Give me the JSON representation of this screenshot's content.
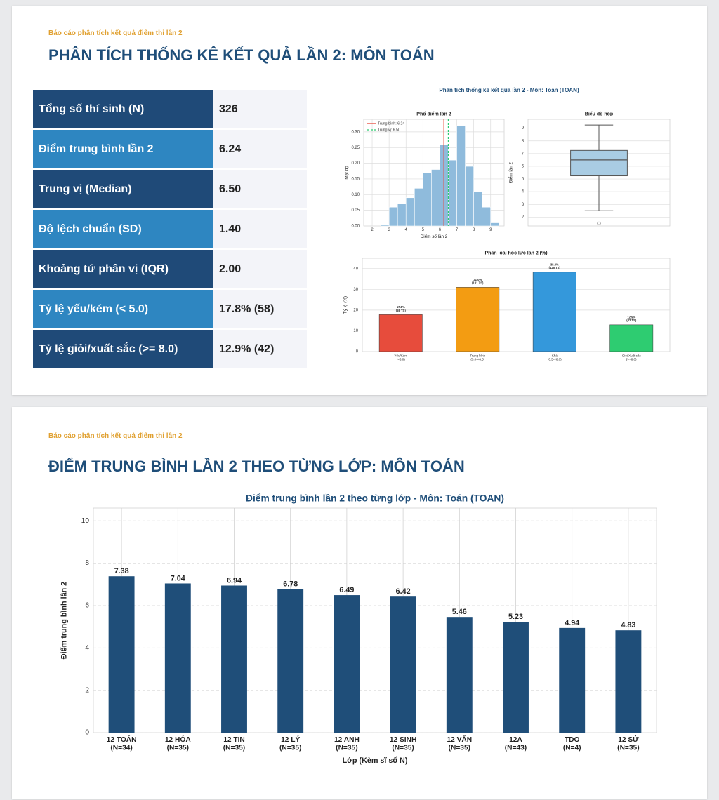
{
  "slide1": {
    "header": "Báo cáo phân tích kết quả điểm thi lần 2",
    "title": "PHÂN TÍCH THỐNG KÊ KẾT QUẢ LẦN 2: MÔN TOÁN"
  },
  "table": {
    "rows": [
      [
        "Tổng số thí sinh (N)",
        "326"
      ],
      [
        "Điểm trung bình lần 2",
        "6.24"
      ],
      [
        "Trung vị (Median)",
        "6.50"
      ],
      [
        "Độ lệch chuẩn (SD)",
        "1.40"
      ],
      [
        "Khoảng tứ phân vị (IQR)",
        "2.00"
      ],
      [
        "Tỷ lệ yếu/kém (< 5.0)",
        "17.8% (58)"
      ],
      [
        "Tỷ lệ giỏi/xuất sắc (>= 8.0)",
        "12.9% (42)"
      ]
    ]
  },
  "figure": {
    "title": "Phân tích thống kê kết quả lần 2 - Môn: Toán (TOAN)"
  },
  "slide2": {
    "header": "Báo cáo phân tích kết quả điểm thi lần 2",
    "title": "ĐIỂM TRUNG BÌNH LẦN 2 THEO TỪNG LỚP: MÔN TOÁN"
  },
  "chart_data": [
    {
      "type": "histogram",
      "title": "Phổ điểm lần 2",
      "xlabel": "Điểm số lần 2",
      "ylabel": "Mật độ",
      "bins": [
        2.5,
        3,
        3.5,
        4,
        4.5,
        5,
        5.5,
        6,
        6.5,
        7,
        7.5,
        8,
        8.5,
        9,
        9.5
      ],
      "values": [
        0.005,
        0.06,
        0.07,
        0.09,
        0.12,
        0.17,
        0.18,
        0.26,
        0.21,
        0.32,
        0.19,
        0.11,
        0.06,
        0.01
      ],
      "color": "#8fbbdc",
      "xlim": [
        1.5,
        9.8
      ],
      "xticks": [
        2,
        3,
        4,
        5,
        6,
        7,
        8,
        9
      ],
      "ylim": [
        0,
        0.34
      ],
      "yticks": [
        {
          "value": 0,
          "label": "0.00"
        },
        {
          "value": 0.05,
          "label": "0.05"
        },
        {
          "value": 0.1,
          "label": "0.10"
        },
        {
          "value": 0.15,
          "label": "0.15"
        },
        {
          "value": 0.2,
          "label": "0.20"
        },
        {
          "value": 0.25,
          "label": "0.25"
        },
        {
          "value": 0.3,
          "label": "0.30"
        }
      ],
      "grid": true,
      "legend": "upper-left",
      "reference_lines": [
        {
          "name": "Trung bình: 6.24",
          "value": 6.24,
          "color": "#e74c3c",
          "style": "solid"
        },
        {
          "name": "Trung vị: 6.50",
          "value": 6.5,
          "color": "#2ecc71",
          "style": "dashed"
        }
      ]
    },
    {
      "type": "box",
      "title": "Biểu đồ hộp",
      "ylabel": "Điểm lần 2",
      "ylim": [
        1.3,
        9.7
      ],
      "yticks": [
        2,
        3,
        4,
        5,
        6,
        7,
        8,
        9
      ],
      "whisker_low": 2.5,
      "q1": 5.25,
      "median": 6.5,
      "q3": 7.25,
      "whisker_high": 9.25,
      "outliers": [
        1.5
      ],
      "color": "#a9cce3",
      "grid": true
    },
    {
      "type": "bar",
      "title": "Phân loại học lực lần 2 (%)",
      "ylabel": "Tỷ lệ (%)",
      "categories": [
        "Yếu/Kém\n(<5.0)",
        "Trung bình\n(5.0-<6.5)",
        "Khá\n(6.5-<8.0)",
        "Giỏi/Xuất sắc\n(>=8.0)"
      ],
      "values": [
        17.8,
        31.0,
        38.3,
        12.9
      ],
      "value_labels": [
        "17.8%\n(58 TS)",
        "31.0%\n(101 TS)",
        "38.3%\n(125 TS)",
        "12.9%\n(42 TS)"
      ],
      "colors": [
        "#e74c3c",
        "#f39c12",
        "#3498db",
        "#2ecc71"
      ],
      "ylim": [
        0,
        45
      ],
      "yticks": [
        0,
        10,
        20,
        30,
        40
      ],
      "grid": true
    },
    {
      "type": "bar",
      "title": "Điểm trung bình lần 2 theo từng lớp - Môn: Toán (TOAN)",
      "xlabel": "Lớp (Kèm sĩ số N)",
      "ylabel": "Điểm trung bình lần 2",
      "categories": [
        "12 TOÁN\n(N=34)",
        "12 HÓA\n(N=35)",
        "12 TIN\n(N=35)",
        "12 LÝ\n(N=35)",
        "12 ANH\n(N=35)",
        "12 SINH\n(N=35)",
        "12 VĂN\n(N=35)",
        "12A\n(N=43)",
        "TDO\n(N=4)",
        "12 SỬ\n(N=35)"
      ],
      "values": [
        7.38,
        7.04,
        6.94,
        6.78,
        6.49,
        6.42,
        5.46,
        5.23,
        4.94,
        4.83
      ],
      "color": "#1f4e79",
      "ylim": [
        0,
        10.6
      ],
      "yticks": [
        0,
        2,
        4,
        6,
        8,
        10
      ],
      "grid": true
    }
  ]
}
